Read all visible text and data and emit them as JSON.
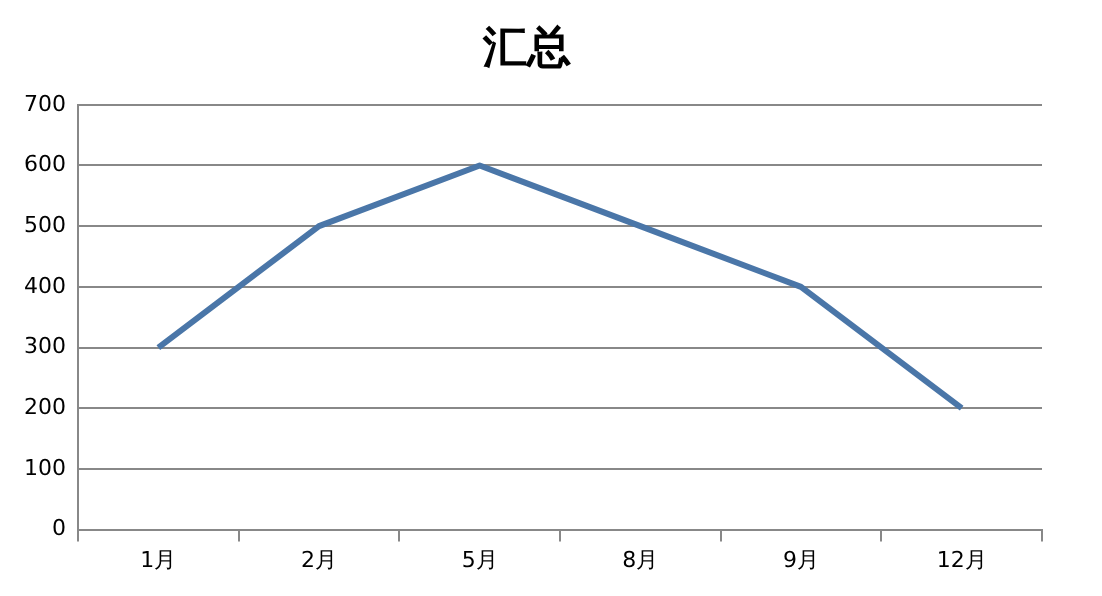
{
  "chart_data": {
    "type": "line",
    "title": "汇总",
    "categories": [
      "1月",
      "2月",
      "5月",
      "8月",
      "9月",
      "12月"
    ],
    "series": [
      {
        "color": "#4a76a8",
        "values": [
          300,
          500,
          600,
          500,
          400,
          200
        ]
      }
    ],
    "ylim": [
      0,
      700
    ],
    "yticks": [
      0,
      100,
      200,
      300,
      400,
      500,
      600,
      700
    ],
    "grid": "y",
    "marker": "none",
    "line_style": "solid"
  }
}
